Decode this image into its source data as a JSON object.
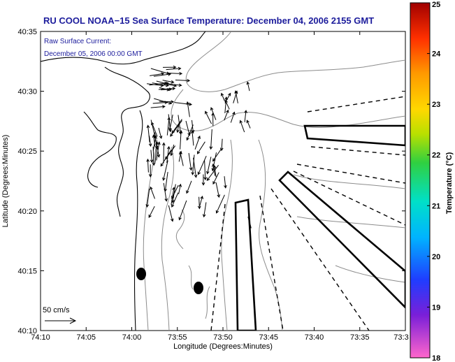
{
  "title": "RU COOL  NOAA−15  Sea Surface Temperature:  December 04, 2006 2155 GMT",
  "annotation": {
    "line1": "Raw Surface Current:",
    "line2": "December 05, 2006 00:00 GMT"
  },
  "axes": {
    "xlabel": "Longitude (Degrees:Minutes)",
    "ylabel": "Latitude (Degrees:Minutes)",
    "xticks": [
      "74:10",
      "74:05",
      "74:00",
      "73:55",
      "73:50",
      "73:45",
      "73:40",
      "73:35",
      "73:3"
    ],
    "yticks": [
      "40:35",
      "40:30",
      "40:25",
      "40:20",
      "40:15",
      "40:10"
    ]
  },
  "scale_vector": {
    "label": "50 cm/s"
  },
  "colorbar": {
    "label": "Temperature (°C)",
    "ticks": [
      "25",
      "24",
      "23",
      "22",
      "21",
      "20",
      "19",
      "18"
    ],
    "min": 18,
    "max": 25,
    "colors": [
      "#ff66cc",
      "#7a1fd8",
      "#1f3dff",
      "#00b4ff",
      "#00e0c8",
      "#30d040",
      "#b8e000",
      "#ffd800",
      "#ff9a00",
      "#ff3000",
      "#a00000"
    ]
  },
  "chart_data": {
    "type": "map",
    "title": "RU COOL  NOAA−15  Sea Surface Temperature:  December 04, 2006 2155 GMT",
    "xlabel": "Longitude (Degrees:Minutes)",
    "ylabel": "Latitude (Degrees:Minutes)",
    "xlim_deg_west": [
      74.1667,
      73.5
    ],
    "ylim_deg_north": [
      40.1667,
      40.5833
    ],
    "colorbar_range_C": [
      18,
      25
    ],
    "scale_vector_cm_s": 50
  }
}
